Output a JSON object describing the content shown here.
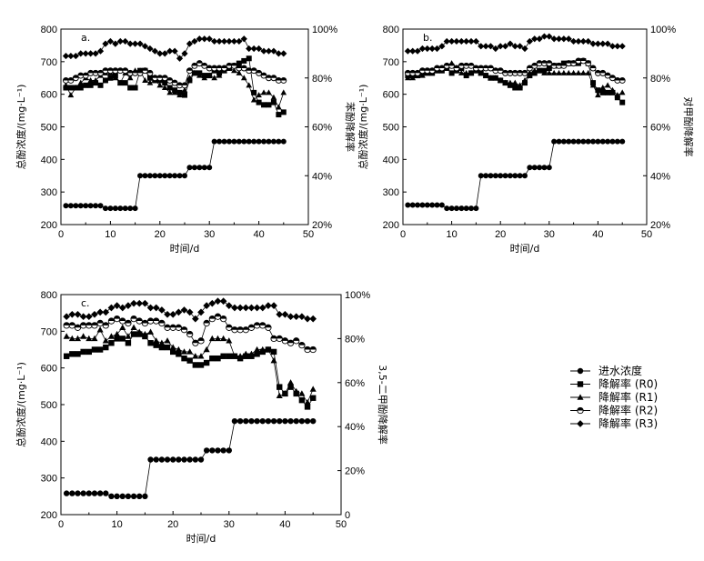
{
  "chart_data": [
    {
      "type": "line",
      "panel_label": "a.",
      "xlabel": "时间/d",
      "ylabel_left": "总酚浓度/(mg·L⁻¹)",
      "ylabel_right": "苯酚降解率",
      "xlim": [
        0,
        50
      ],
      "ylim_left": [
        200,
        800
      ],
      "ylim_right": [
        0.2,
        1.0
      ],
      "x_ticks": [
        "0",
        "10",
        "20",
        "30",
        "40",
        "50"
      ],
      "y_left_ticks": [
        "200",
        "300",
        "400",
        "500",
        "600",
        "700",
        "800"
      ],
      "y_right_ticks": [
        "20%",
        "40%",
        "60%",
        "80%",
        "100%"
      ],
      "x": [
        1,
        2,
        3,
        4,
        5,
        6,
        7,
        8,
        9,
        10,
        11,
        12,
        13,
        14,
        15,
        16,
        17,
        18,
        19,
        20,
        21,
        22,
        23,
        24,
        25,
        26,
        27,
        28,
        29,
        30,
        31,
        32,
        33,
        34,
        35,
        36,
        37,
        38,
        39,
        40,
        41,
        42,
        43,
        44,
        45
      ],
      "influent": [
        258,
        258,
        258,
        258,
        258,
        258,
        258,
        258,
        250,
        250,
        250,
        250,
        250,
        250,
        250,
        350,
        350,
        350,
        350,
        350,
        350,
        350,
        350,
        350,
        350,
        375,
        375,
        375,
        375,
        375,
        455,
        455,
        455,
        455,
        455,
        455,
        455,
        455,
        455,
        455,
        455,
        455,
        455,
        455,
        455
      ],
      "series": [
        {
          "name": "降解率 (R0)",
          "values": [
            0.76,
            0.76,
            0.76,
            0.76,
            0.77,
            0.77,
            0.78,
            0.77,
            0.79,
            0.8,
            0.81,
            0.78,
            0.78,
            0.76,
            0.76,
            0.83,
            0.83,
            0.8,
            0.79,
            0.79,
            0.78,
            0.76,
            0.75,
            0.74,
            0.73,
            0.79,
            0.82,
            0.82,
            0.81,
            0.81,
            0.83,
            0.82,
            0.83,
            0.84,
            0.85,
            0.86,
            0.87,
            0.88,
            0.74,
            0.7,
            0.69,
            0.69,
            0.7,
            0.65,
            0.66
          ]
        },
        {
          "name": "降解率 (R1)",
          "values": [
            0.77,
            0.73,
            0.76,
            0.78,
            0.8,
            0.79,
            0.79,
            0.81,
            0.82,
            0.82,
            0.8,
            0.78,
            0.82,
            0.8,
            0.83,
            0.83,
            0.79,
            0.78,
            0.79,
            0.77,
            0.76,
            0.74,
            0.74,
            0.73,
            0.75,
            0.8,
            0.82,
            0.81,
            0.8,
            0.81,
            0.8,
            0.81,
            0.83,
            0.84,
            0.83,
            0.82,
            0.8,
            0.77,
            0.71,
            0.73,
            0.74,
            0.74,
            0.72,
            0.68,
            0.74
          ]
        },
        {
          "name": "降解率 (R2)",
          "values": [
            0.79,
            0.79,
            0.8,
            0.81,
            0.81,
            0.82,
            0.82,
            0.82,
            0.83,
            0.83,
            0.83,
            0.83,
            0.83,
            0.82,
            0.82,
            0.82,
            0.83,
            0.82,
            0.8,
            0.8,
            0.8,
            0.79,
            0.78,
            0.77,
            0.77,
            0.83,
            0.85,
            0.86,
            0.85,
            0.84,
            0.84,
            0.84,
            0.84,
            0.85,
            0.85,
            0.84,
            0.84,
            0.83,
            0.83,
            0.82,
            0.81,
            0.8,
            0.8,
            0.79,
            0.79
          ]
        },
        {
          "name": "降解率 (R3)",
          "values": [
            0.89,
            0.89,
            0.89,
            0.9,
            0.9,
            0.9,
            0.9,
            0.91,
            0.94,
            0.95,
            0.94,
            0.95,
            0.95,
            0.94,
            0.94,
            0.94,
            0.93,
            0.92,
            0.91,
            0.9,
            0.9,
            0.91,
            0.91,
            0.88,
            0.9,
            0.94,
            0.95,
            0.96,
            0.96,
            0.96,
            0.95,
            0.95,
            0.95,
            0.95,
            0.95,
            0.95,
            0.96,
            0.92,
            0.92,
            0.92,
            0.91,
            0.91,
            0.91,
            0.9,
            0.9
          ]
        }
      ]
    },
    {
      "type": "line",
      "panel_label": "b.",
      "xlabel": "时间/d",
      "ylabel_left": "总酚浓度/(mg·L⁻¹)",
      "ylabel_right": "对甲酚降解率",
      "xlim": [
        0,
        50
      ],
      "ylim_left": [
        200,
        800
      ],
      "ylim_right": [
        0.2,
        1.0
      ],
      "x_ticks": [
        "0",
        "10",
        "20",
        "30",
        "40",
        "50"
      ],
      "y_left_ticks": [
        "200",
        "300",
        "400",
        "500",
        "600",
        "700",
        "800"
      ],
      "y_right_ticks": [
        "20%",
        "40%",
        "60%",
        "80%",
        "100%"
      ],
      "x": [
        1,
        2,
        3,
        4,
        5,
        6,
        7,
        8,
        9,
        10,
        11,
        12,
        13,
        14,
        15,
        16,
        17,
        18,
        19,
        20,
        21,
        22,
        23,
        24,
        25,
        26,
        27,
        28,
        29,
        30,
        31,
        32,
        33,
        34,
        35,
        36,
        37,
        38,
        39,
        40,
        41,
        42,
        43,
        44,
        45
      ],
      "influent": [
        260,
        260,
        260,
        260,
        260,
        260,
        260,
        260,
        250,
        250,
        250,
        250,
        250,
        250,
        250,
        350,
        350,
        350,
        350,
        350,
        350,
        350,
        350,
        350,
        350,
        375,
        375,
        375,
        375,
        375,
        455,
        455,
        455,
        455,
        455,
        455,
        455,
        455,
        455,
        455,
        455,
        455,
        455,
        455,
        455
      ],
      "series": [
        {
          "name": "降解率 (R0)",
          "values": [
            0.81,
            0.81,
            0.81,
            0.82,
            0.82,
            0.82,
            0.83,
            0.83,
            0.84,
            0.82,
            0.83,
            0.84,
            0.81,
            0.82,
            0.83,
            0.82,
            0.81,
            0.8,
            0.8,
            0.79,
            0.78,
            0.77,
            0.76,
            0.76,
            0.78,
            0.81,
            0.82,
            0.83,
            0.83,
            0.84,
            0.85,
            0.85,
            0.86,
            0.86,
            0.86,
            0.86,
            0.87,
            0.86,
            0.78,
            0.75,
            0.74,
            0.74,
            0.74,
            0.72,
            0.7
          ]
        },
        {
          "name": "降解率 (R1)",
          "values": [
            0.8,
            0.8,
            0.81,
            0.81,
            0.82,
            0.83,
            0.83,
            0.84,
            0.85,
            0.86,
            0.83,
            0.82,
            0.82,
            0.82,
            0.83,
            0.82,
            0.81,
            0.8,
            0.8,
            0.79,
            0.78,
            0.78,
            0.78,
            0.77,
            0.79,
            0.82,
            0.83,
            0.83,
            0.82,
            0.82,
            0.82,
            0.82,
            0.82,
            0.82,
            0.82,
            0.82,
            0.82,
            0.82,
            0.77,
            0.73,
            0.76,
            0.77,
            0.75,
            0.73,
            0.74
          ]
        },
        {
          "name": "降解率 (R2)",
          "values": [
            0.82,
            0.82,
            0.82,
            0.83,
            0.83,
            0.83,
            0.84,
            0.84,
            0.85,
            0.85,
            0.84,
            0.85,
            0.85,
            0.85,
            0.84,
            0.84,
            0.84,
            0.84,
            0.83,
            0.83,
            0.82,
            0.82,
            0.82,
            0.82,
            0.82,
            0.84,
            0.85,
            0.86,
            0.86,
            0.86,
            0.85,
            0.85,
            0.85,
            0.86,
            0.86,
            0.87,
            0.87,
            0.86,
            0.84,
            0.82,
            0.82,
            0.81,
            0.8,
            0.79,
            0.79
          ]
        },
        {
          "name": "降解率 (R3)",
          "values": [
            0.91,
            0.91,
            0.91,
            0.92,
            0.92,
            0.92,
            0.92,
            0.93,
            0.95,
            0.95,
            0.95,
            0.95,
            0.95,
            0.95,
            0.95,
            0.93,
            0.93,
            0.93,
            0.92,
            0.93,
            0.93,
            0.94,
            0.93,
            0.93,
            0.92,
            0.95,
            0.96,
            0.96,
            0.97,
            0.97,
            0.96,
            0.96,
            0.96,
            0.96,
            0.95,
            0.95,
            0.95,
            0.95,
            0.94,
            0.94,
            0.94,
            0.94,
            0.93,
            0.93,
            0.93
          ]
        }
      ]
    },
    {
      "type": "line",
      "panel_label": "c.",
      "xlabel": "时间/d",
      "ylabel_left": "总酚浓度/(mg·L⁻¹)",
      "ylabel_right": "3,5-二甲酚降解率",
      "xlim": [
        0,
        50
      ],
      "ylim_left": [
        200,
        800
      ],
      "ylim_right": [
        0.0,
        1.0
      ],
      "x_ticks": [
        "0",
        "10",
        "20",
        "30",
        "40",
        "50"
      ],
      "y_left_ticks": [
        "200",
        "300",
        "400",
        "500",
        "600",
        "700",
        "800"
      ],
      "y_right_ticks": [
        "0",
        "20%",
        "40%",
        "60%",
        "80%",
        "100%"
      ],
      "x": [
        1,
        2,
        3,
        4,
        5,
        6,
        7,
        8,
        9,
        10,
        11,
        12,
        13,
        14,
        15,
        16,
        17,
        18,
        19,
        20,
        21,
        22,
        23,
        24,
        25,
        26,
        27,
        28,
        29,
        30,
        31,
        32,
        33,
        34,
        35,
        36,
        37,
        38,
        39,
        40,
        41,
        42,
        43,
        44,
        45
      ],
      "influent": [
        258,
        258,
        258,
        258,
        258,
        258,
        258,
        258,
        250,
        250,
        250,
        250,
        250,
        250,
        250,
        350,
        350,
        350,
        350,
        350,
        350,
        350,
        350,
        350,
        350,
        375,
        375,
        375,
        375,
        375,
        455,
        455,
        455,
        455,
        455,
        455,
        455,
        455,
        455,
        455,
        455,
        455,
        455,
        455,
        455
      ],
      "series": [
        {
          "name": "降解率 (R0)",
          "values": [
            0.72,
            0.73,
            0.73,
            0.74,
            0.74,
            0.75,
            0.75,
            0.76,
            0.78,
            0.8,
            0.8,
            0.78,
            0.82,
            0.82,
            0.81,
            0.78,
            0.77,
            0.76,
            0.76,
            0.74,
            0.73,
            0.71,
            0.7,
            0.68,
            0.68,
            0.69,
            0.71,
            0.71,
            0.72,
            0.72,
            0.72,
            0.71,
            0.72,
            0.72,
            0.73,
            0.74,
            0.75,
            0.74,
            0.58,
            0.55,
            0.58,
            0.55,
            0.52,
            0.49,
            0.53
          ]
        },
        {
          "name": "降解率 (R1)",
          "values": [
            0.81,
            0.8,
            0.8,
            0.81,
            0.8,
            0.8,
            0.84,
            0.79,
            0.81,
            0.82,
            0.85,
            0.81,
            0.85,
            0.83,
            0.82,
            0.83,
            0.79,
            0.78,
            0.79,
            0.76,
            0.75,
            0.74,
            0.74,
            0.72,
            0.72,
            0.75,
            0.8,
            0.8,
            0.8,
            0.79,
            0.72,
            0.72,
            0.73,
            0.73,
            0.75,
            0.75,
            0.75,
            0.7,
            0.54,
            0.55,
            0.6,
            0.56,
            0.55,
            0.51,
            0.57
          ]
        },
        {
          "name": "降解率 (R2)",
          "values": [
            0.86,
            0.86,
            0.85,
            0.86,
            0.86,
            0.86,
            0.87,
            0.86,
            0.88,
            0.89,
            0.88,
            0.87,
            0.89,
            0.88,
            0.87,
            0.88,
            0.88,
            0.87,
            0.85,
            0.85,
            0.85,
            0.84,
            0.82,
            0.78,
            0.79,
            0.87,
            0.89,
            0.9,
            0.89,
            0.85,
            0.84,
            0.84,
            0.84,
            0.85,
            0.86,
            0.86,
            0.85,
            0.8,
            0.8,
            0.79,
            0.78,
            0.79,
            0.77,
            0.75,
            0.75
          ]
        },
        {
          "name": "降解率 (R3)",
          "values": [
            0.9,
            0.91,
            0.91,
            0.9,
            0.9,
            0.91,
            0.92,
            0.92,
            0.94,
            0.95,
            0.94,
            0.95,
            0.96,
            0.96,
            0.96,
            0.94,
            0.94,
            0.93,
            0.91,
            0.91,
            0.92,
            0.93,
            0.92,
            0.89,
            0.92,
            0.95,
            0.96,
            0.97,
            0.97,
            0.95,
            0.94,
            0.94,
            0.94,
            0.94,
            0.94,
            0.94,
            0.95,
            0.95,
            0.91,
            0.91,
            0.9,
            0.9,
            0.9,
            0.89,
            0.89
          ]
        }
      ]
    }
  ],
  "legend": {
    "items": [
      {
        "label": "进水浓度",
        "marker": "circle"
      },
      {
        "label": "降解率 (R0)",
        "marker": "square"
      },
      {
        "label": "降解率 (R1)",
        "marker": "triangle"
      },
      {
        "label": "降解率 (R2)",
        "marker": "half-circle"
      },
      {
        "label": "降解率 (R3)",
        "marker": "diamond"
      }
    ]
  }
}
